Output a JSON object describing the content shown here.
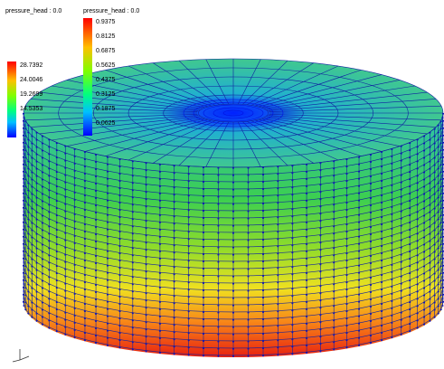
{
  "legends": [
    {
      "title": "pressure_head : 0.0",
      "labels": [
        "28.7392",
        "24.0046",
        "19.2699",
        "14.5353"
      ]
    },
    {
      "title": "pressure_head : 0.0",
      "labels": [
        "0.9375",
        "0.8125",
        "0.6875",
        "0.5625",
        "0.4375",
        "0.3125",
        "0.1875",
        "0.0625"
      ]
    }
  ]
}
